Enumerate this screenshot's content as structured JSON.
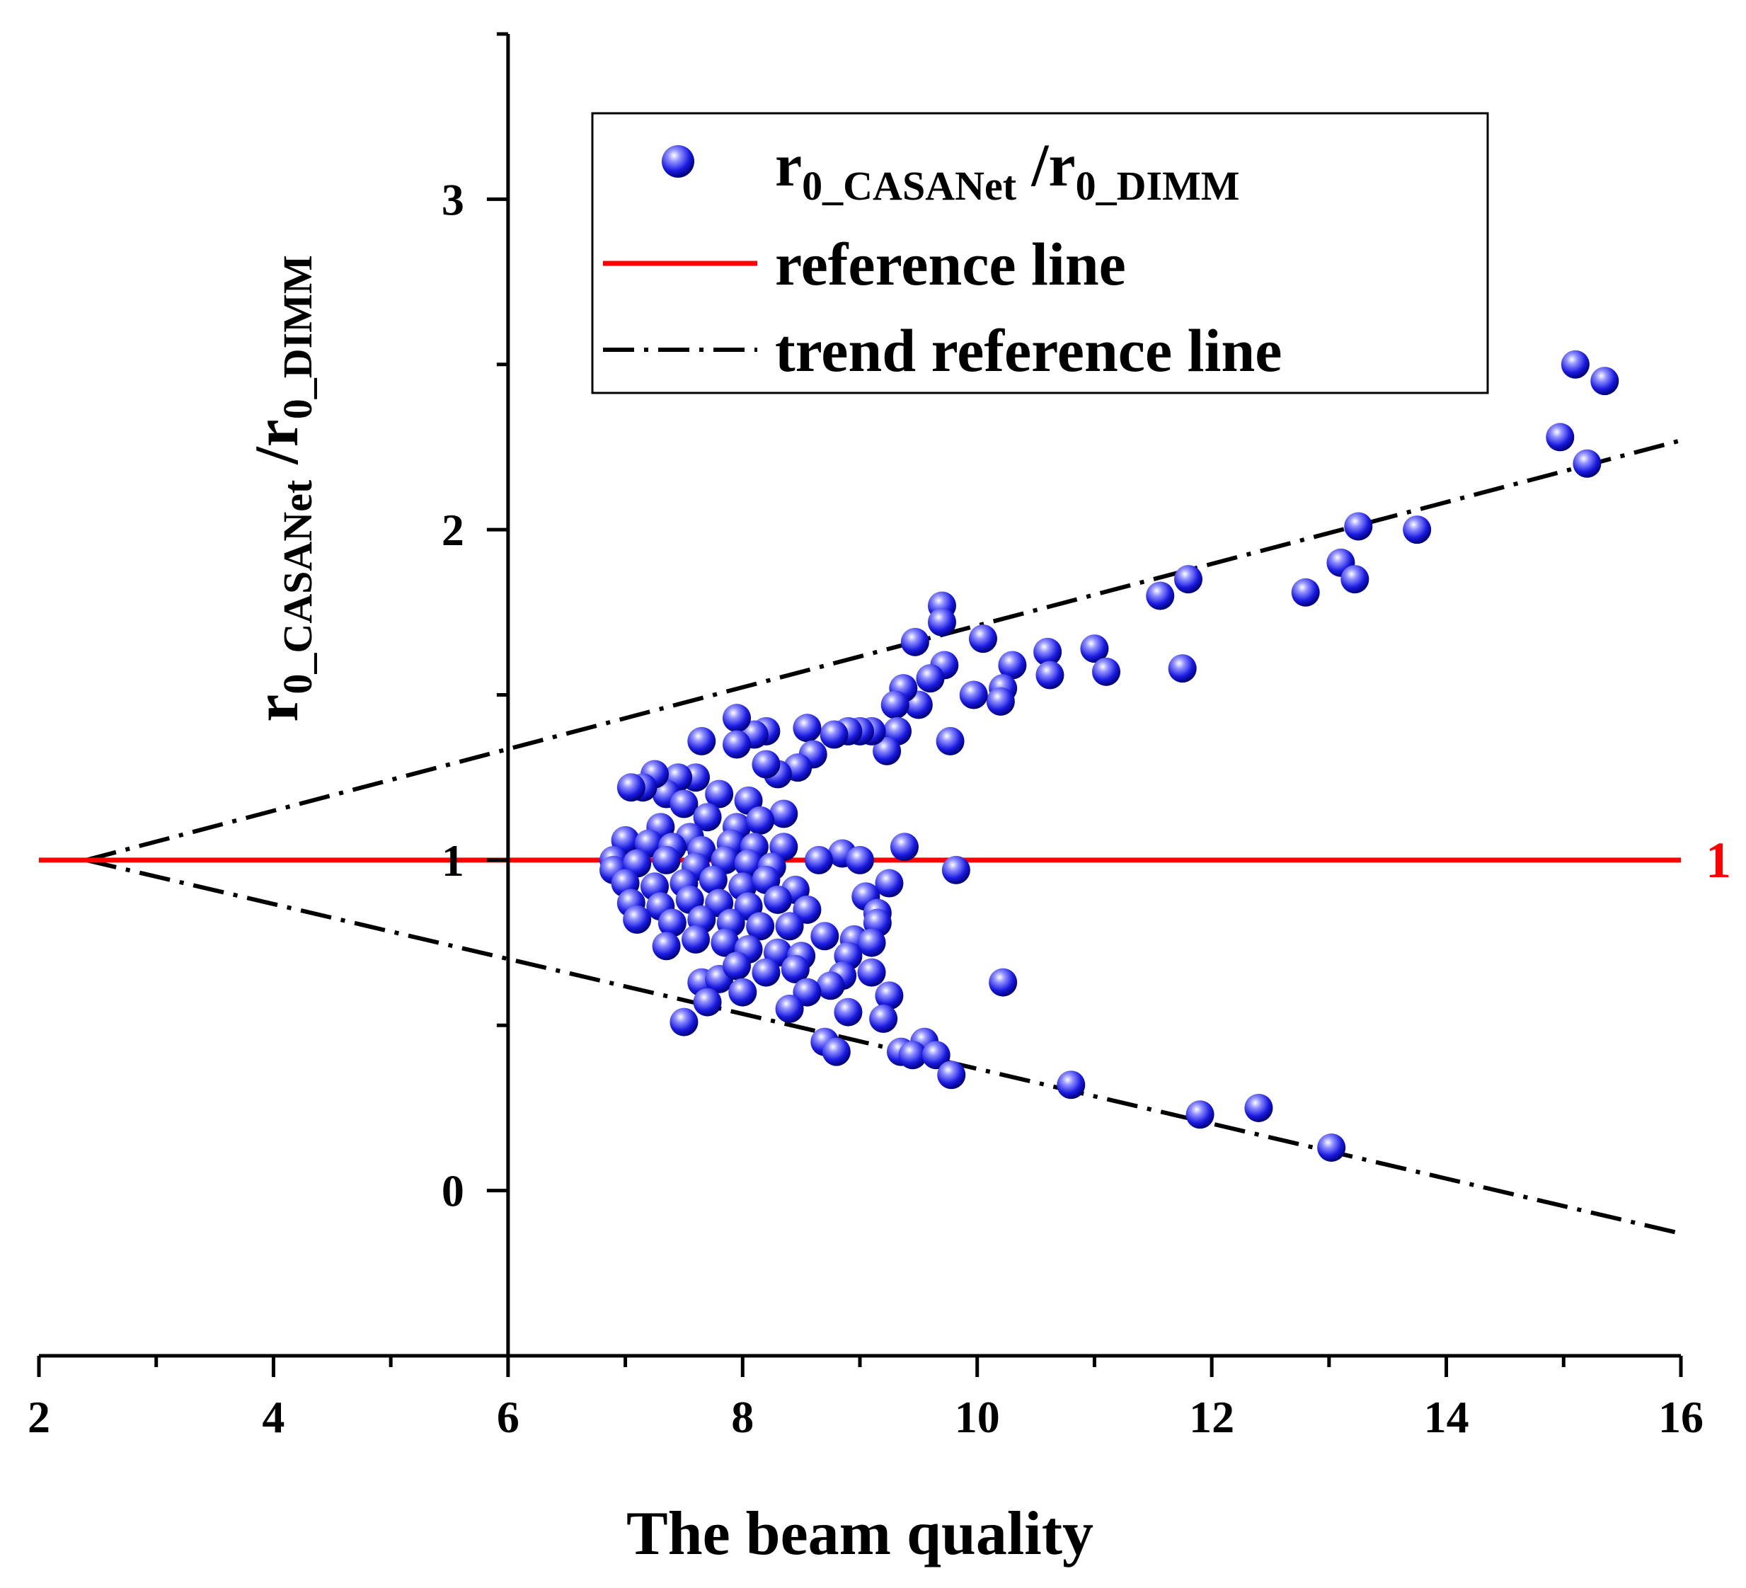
{
  "chart_data": {
    "type": "scatter",
    "xlabel": "The beam quality",
    "ylabel": {
      "main": "r",
      "sub1": "0_CASANet",
      "slash": " /r",
      "sub2": "0_DIMM"
    },
    "xlim": [
      2,
      16
    ],
    "ylim": [
      -0.5,
      3.5
    ],
    "xticks": [
      "2",
      "4",
      "6",
      "8",
      "10",
      "12",
      "14",
      "16"
    ],
    "xtick_values": [
      2,
      4,
      6,
      8,
      10,
      12,
      14,
      16
    ],
    "yticks": [
      "0",
      "1",
      "2",
      "3"
    ],
    "ytick_values": [
      0,
      1,
      2,
      3
    ],
    "grid": false,
    "legend_position": "top-right",
    "colors": {
      "points": "#1a1ae0",
      "reference": "#ff0000",
      "trend": "#000000"
    },
    "legend": [
      {
        "marker": "sphere",
        "label_main": "r",
        "label_sub1": "0_CASANet",
        "label_mid": " /r",
        "label_sub2": "0_DIMM"
      },
      {
        "marker": "solid-red-line",
        "label": "reference line"
      },
      {
        "marker": "dash-dot-line",
        "label": "trend reference line"
      }
    ],
    "reference_line": {
      "y": 1,
      "label": "1"
    },
    "trend_lines": [
      {
        "x": [
          2.4,
          16
        ],
        "y": [
          1.0,
          2.27
        ]
      },
      {
        "x": [
          2.4,
          16
        ],
        "y": [
          1.0,
          -0.13
        ]
      }
    ],
    "series": [
      {
        "name": "r0_CASANet /r0_DIMM",
        "points": [
          [
            15.1,
            2.5
          ],
          [
            15.35,
            2.45
          ],
          [
            14.97,
            2.28
          ],
          [
            15.2,
            2.2
          ],
          [
            13.25,
            2.01
          ],
          [
            13.75,
            2.0
          ],
          [
            13.1,
            1.9
          ],
          [
            13.22,
            1.85
          ],
          [
            12.8,
            1.81
          ],
          [
            11.8,
            1.85
          ],
          [
            11.56,
            1.8
          ],
          [
            11.75,
            1.58
          ],
          [
            11.0,
            1.64
          ],
          [
            11.1,
            1.57
          ],
          [
            10.6,
            1.63
          ],
          [
            10.62,
            1.56
          ],
          [
            10.3,
            1.59
          ],
          [
            10.05,
            1.67
          ],
          [
            10.22,
            1.52
          ],
          [
            10.2,
            1.48
          ],
          [
            9.97,
            1.5
          ],
          [
            9.7,
            1.77
          ],
          [
            9.7,
            1.72
          ],
          [
            9.47,
            1.66
          ],
          [
            9.72,
            1.59
          ],
          [
            9.6,
            1.55
          ],
          [
            9.5,
            1.47
          ],
          [
            9.77,
            1.36
          ],
          [
            9.37,
            1.52
          ],
          [
            9.3,
            1.47
          ],
          [
            9.32,
            1.39
          ],
          [
            9.23,
            1.33
          ],
          [
            9.1,
            1.39
          ],
          [
            9.0,
            1.39
          ],
          [
            8.9,
            1.39
          ],
          [
            8.78,
            1.38
          ],
          [
            8.55,
            1.4
          ],
          [
            8.6,
            1.32
          ],
          [
            8.47,
            1.28
          ],
          [
            8.35,
            1.14
          ],
          [
            8.3,
            1.26
          ],
          [
            8.2,
            1.39
          ],
          [
            8.2,
            1.29
          ],
          [
            8.1,
            1.38
          ],
          [
            7.95,
            1.43
          ],
          [
            7.95,
            1.35
          ],
          [
            7.65,
            1.36
          ],
          [
            7.6,
            1.25
          ],
          [
            7.45,
            1.25
          ],
          [
            7.35,
            1.2
          ],
          [
            7.25,
            1.26
          ],
          [
            7.15,
            1.22
          ],
          [
            7.05,
            1.22
          ],
          [
            7.8,
            1.2
          ],
          [
            8.05,
            1.18
          ],
          [
            7.5,
            1.17
          ],
          [
            7.7,
            1.13
          ],
          [
            7.95,
            1.1
          ],
          [
            8.15,
            1.12
          ],
          [
            7.3,
            1.1
          ],
          [
            7.55,
            1.07
          ],
          [
            7.0,
            1.06
          ],
          [
            7.2,
            1.05
          ],
          [
            7.4,
            1.04
          ],
          [
            7.65,
            1.03
          ],
          [
            7.9,
            1.05
          ],
          [
            8.1,
            1.04
          ],
          [
            8.35,
            1.04
          ],
          [
            9.38,
            1.04
          ],
          [
            8.85,
            1.02
          ],
          [
            9.0,
            1.0
          ],
          [
            8.65,
            1.0
          ],
          [
            6.9,
            1.0
          ],
          [
            6.9,
            0.97
          ],
          [
            7.1,
            0.99
          ],
          [
            7.35,
            1.0
          ],
          [
            7.6,
            0.98
          ],
          [
            7.85,
            1.0
          ],
          [
            8.05,
            0.99
          ],
          [
            8.25,
            0.98
          ],
          [
            9.82,
            0.97
          ],
          [
            7.0,
            0.93
          ],
          [
            7.25,
            0.92
          ],
          [
            7.5,
            0.93
          ],
          [
            7.75,
            0.94
          ],
          [
            8.0,
            0.92
          ],
          [
            8.2,
            0.94
          ],
          [
            8.45,
            0.91
          ],
          [
            9.25,
            0.93
          ],
          [
            9.05,
            0.89
          ],
          [
            7.05,
            0.87
          ],
          [
            7.3,
            0.86
          ],
          [
            7.55,
            0.88
          ],
          [
            7.8,
            0.87
          ],
          [
            8.05,
            0.86
          ],
          [
            8.3,
            0.88
          ],
          [
            8.55,
            0.85
          ],
          [
            9.15,
            0.84
          ],
          [
            7.1,
            0.82
          ],
          [
            7.4,
            0.81
          ],
          [
            7.65,
            0.82
          ],
          [
            7.9,
            0.81
          ],
          [
            8.15,
            0.8
          ],
          [
            8.4,
            0.8
          ],
          [
            8.7,
            0.77
          ],
          [
            9.15,
            0.81
          ],
          [
            8.95,
            0.76
          ],
          [
            9.1,
            0.75
          ],
          [
            7.35,
            0.74
          ],
          [
            7.6,
            0.76
          ],
          [
            7.85,
            0.75
          ],
          [
            8.05,
            0.73
          ],
          [
            8.3,
            0.72
          ],
          [
            8.5,
            0.71
          ],
          [
            8.9,
            0.71
          ],
          [
            7.65,
            0.63
          ],
          [
            7.8,
            0.64
          ],
          [
            7.95,
            0.68
          ],
          [
            8.2,
            0.66
          ],
          [
            8.45,
            0.67
          ],
          [
            8.85,
            0.65
          ],
          [
            9.1,
            0.66
          ],
          [
            8.75,
            0.62
          ],
          [
            8.55,
            0.6
          ],
          [
            9.25,
            0.59
          ],
          [
            7.7,
            0.57
          ],
          [
            8.0,
            0.6
          ],
          [
            8.4,
            0.55
          ],
          [
            8.9,
            0.54
          ],
          [
            9.2,
            0.52
          ],
          [
            10.22,
            0.63
          ],
          [
            7.5,
            0.51
          ],
          [
            8.7,
            0.45
          ],
          [
            8.8,
            0.42
          ],
          [
            9.35,
            0.42
          ],
          [
            9.55,
            0.45
          ],
          [
            9.45,
            0.41
          ],
          [
            9.65,
            0.41
          ],
          [
            9.78,
            0.35
          ],
          [
            10.8,
            0.32
          ],
          [
            11.9,
            0.23
          ],
          [
            12.4,
            0.25
          ],
          [
            13.02,
            0.13
          ]
        ]
      }
    ]
  }
}
